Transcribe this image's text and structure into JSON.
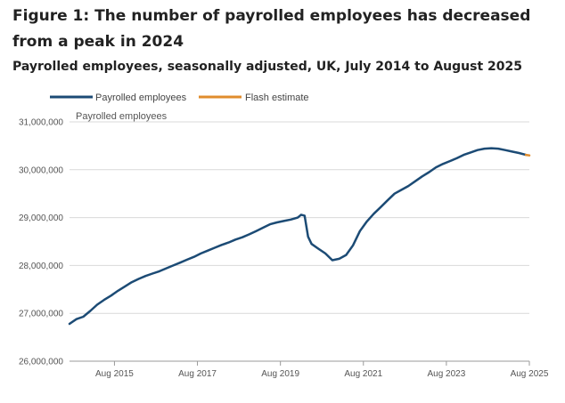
{
  "figure": {
    "title": "Figure 1: The number of payrolled employees has decreased from a peak in 2024",
    "subtitle": "Payrolled employees, seasonally adjusted, UK, July 2014 to August 2025"
  },
  "chart_data": {
    "type": "line",
    "title": "Figure 1: The number of payrolled employees has decreased from a peak in 2024",
    "subtitle": "Payrolled employees, seasonally adjusted, UK, July 2014 to August 2025",
    "ylabel": "Payrolled employees",
    "xlabel": "",
    "ylim": [
      26000000,
      31000000
    ],
    "yticks": [
      26000000,
      27000000,
      28000000,
      29000000,
      30000000,
      31000000
    ],
    "ytick_labels": [
      "26,000,000",
      "27,000,000",
      "28,000,000",
      "29,000,000",
      "30,000,000",
      "31,000,000"
    ],
    "xlim": [
      "2014-07",
      "2025-08"
    ],
    "xticks": [
      "2015-08",
      "2017-08",
      "2019-08",
      "2021-08",
      "2023-08",
      "2025-08"
    ],
    "xtick_labels": [
      "Aug 2015",
      "Aug 2017",
      "Aug 2019",
      "Aug 2021",
      "Aug 2023",
      "Aug 2025"
    ],
    "grid": "horizontal",
    "legend_position": "top-left",
    "legend": [
      "Payrolled employees",
      "Flash estimate"
    ],
    "colors": {
      "payrolled": "#1c4b75",
      "flash": "#e08c2c",
      "grid": "#d9d9d9",
      "axis": "#9a9a9a"
    },
    "series": [
      {
        "name": "Payrolled employees",
        "color": "#1c4b75",
        "points": [
          [
            "2014-07",
            26780000
          ],
          [
            "2014-09",
            26880000
          ],
          [
            "2014-11",
            26930000
          ],
          [
            "2015-01",
            27050000
          ],
          [
            "2015-03",
            27180000
          ],
          [
            "2015-05",
            27280000
          ],
          [
            "2015-07",
            27370000
          ],
          [
            "2015-09",
            27470000
          ],
          [
            "2015-11",
            27560000
          ],
          [
            "2016-01",
            27650000
          ],
          [
            "2016-03",
            27720000
          ],
          [
            "2016-05",
            27780000
          ],
          [
            "2016-07",
            27830000
          ],
          [
            "2016-09",
            27880000
          ],
          [
            "2016-11",
            27940000
          ],
          [
            "2017-01",
            28000000
          ],
          [
            "2017-03",
            28060000
          ],
          [
            "2017-05",
            28120000
          ],
          [
            "2017-07",
            28180000
          ],
          [
            "2017-09",
            28250000
          ],
          [
            "2017-11",
            28310000
          ],
          [
            "2018-01",
            28370000
          ],
          [
            "2018-03",
            28430000
          ],
          [
            "2018-05",
            28480000
          ],
          [
            "2018-07",
            28540000
          ],
          [
            "2018-09",
            28590000
          ],
          [
            "2018-11",
            28650000
          ],
          [
            "2019-01",
            28720000
          ],
          [
            "2019-03",
            28790000
          ],
          [
            "2019-05",
            28860000
          ],
          [
            "2019-07",
            28900000
          ],
          [
            "2019-09",
            28930000
          ],
          [
            "2019-11",
            28960000
          ],
          [
            "2020-01",
            29000000
          ],
          [
            "2020-02",
            29060000
          ],
          [
            "2020-03",
            29040000
          ],
          [
            "2020-04",
            28600000
          ],
          [
            "2020-05",
            28450000
          ],
          [
            "2020-07",
            28350000
          ],
          [
            "2020-09",
            28250000
          ],
          [
            "2020-11",
            28110000
          ],
          [
            "2021-01",
            28140000
          ],
          [
            "2021-03",
            28220000
          ],
          [
            "2021-05",
            28420000
          ],
          [
            "2021-07",
            28720000
          ],
          [
            "2021-09",
            28920000
          ],
          [
            "2021-11",
            29080000
          ],
          [
            "2022-01",
            29220000
          ],
          [
            "2022-03",
            29360000
          ],
          [
            "2022-05",
            29500000
          ],
          [
            "2022-07",
            29580000
          ],
          [
            "2022-09",
            29660000
          ],
          [
            "2022-11",
            29760000
          ],
          [
            "2023-01",
            29860000
          ],
          [
            "2023-03",
            29950000
          ],
          [
            "2023-05",
            30050000
          ],
          [
            "2023-07",
            30120000
          ],
          [
            "2023-09",
            30180000
          ],
          [
            "2023-11",
            30240000
          ],
          [
            "2024-01",
            30310000
          ],
          [
            "2024-03",
            30360000
          ],
          [
            "2024-05",
            30410000
          ],
          [
            "2024-07",
            30440000
          ],
          [
            "2024-09",
            30450000
          ],
          [
            "2024-11",
            30440000
          ],
          [
            "2025-01",
            30410000
          ],
          [
            "2025-03",
            30380000
          ],
          [
            "2025-05",
            30350000
          ],
          [
            "2025-07",
            30310000
          ]
        ]
      },
      {
        "name": "Flash estimate",
        "color": "#e08c2c",
        "points": [
          [
            "2025-07",
            30310000
          ],
          [
            "2025-08",
            30300000
          ]
        ]
      }
    ]
  }
}
